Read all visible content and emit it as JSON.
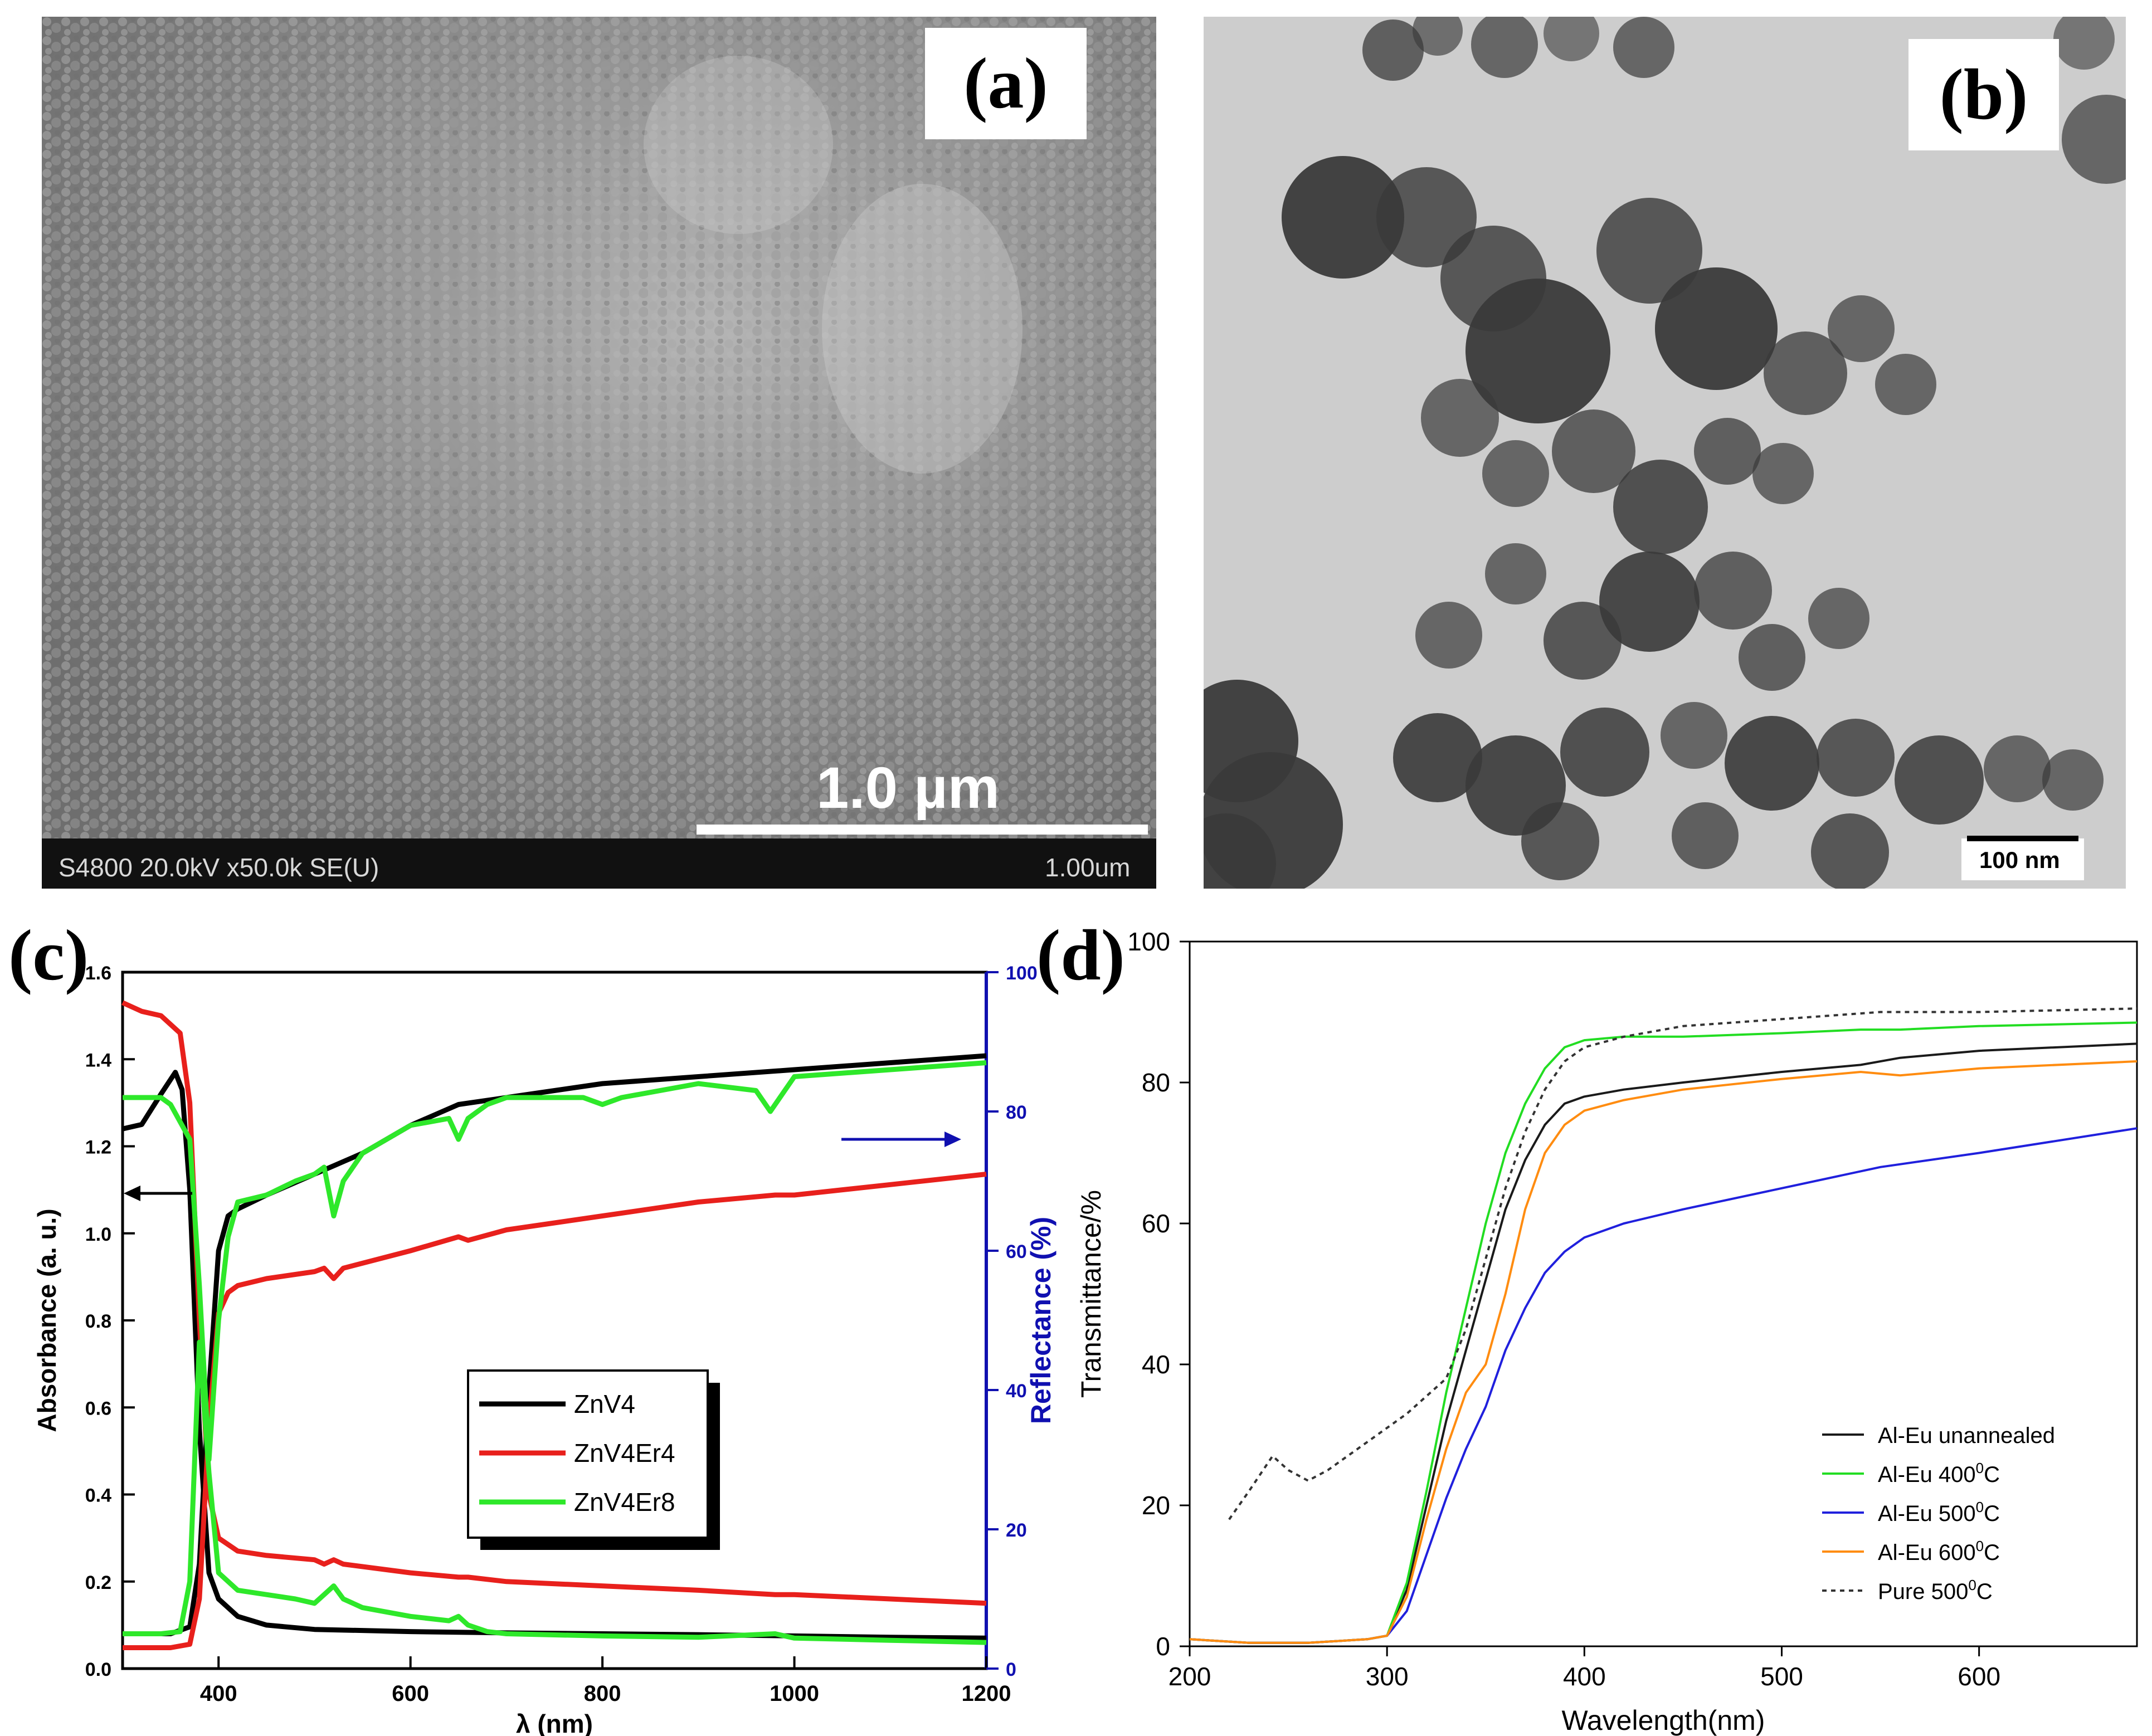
{
  "panels": {
    "a": {
      "label": "(a)",
      "scale_bar_label": "1.0 µm",
      "footer_text": "S4800 20.0kV x50.0k SE(U)",
      "footer_scale": "1.00um"
    },
    "b": {
      "label": "(b)",
      "scale_bar_label": "100 nm"
    },
    "c": {
      "label": "(c)"
    },
    "d": {
      "label": "(d)"
    }
  },
  "colors": {
    "black": "#000000",
    "red": "#e8201c",
    "green": "#2ee82a",
    "blue_axis": "#1010b0",
    "d_black": "#1a1a1a",
    "d_green": "#22dd22",
    "d_blue": "#2020dd",
    "d_orange": "#ff8c10",
    "d_dotted": "#333333"
  },
  "chart_data": [
    {
      "id": "c",
      "type": "line",
      "xlabel": "λ (nm)",
      "ylabel": "Absorbance (a. u.)",
      "y2label": "Reflectance (%)",
      "xlim": [
        300,
        1200
      ],
      "ylim": [
        0,
        1.6
      ],
      "y2lim": [
        0,
        100
      ],
      "xticks": [
        400,
        600,
        800,
        1000,
        1200
      ],
      "yticks": [
        0.0,
        0.2,
        0.4,
        0.6,
        0.8,
        1.0,
        1.2,
        1.4,
        1.6
      ],
      "y2ticks": [
        0,
        20,
        40,
        60,
        80,
        100
      ],
      "legend": {
        "position": "center",
        "entries": [
          "ZnV4",
          "ZnV4Er4",
          "ZnV4Er8"
        ]
      },
      "series": [
        {
          "name": "ZnV4",
          "color": "black",
          "axis": "absorbance",
          "x": [
            300,
            320,
            340,
            355,
            362,
            370,
            380,
            390,
            400,
            420,
            450,
            500,
            600,
            700,
            800,
            900,
            1000,
            1100,
            1200
          ],
          "y": [
            1.24,
            1.25,
            1.32,
            1.37,
            1.33,
            1.1,
            0.55,
            0.22,
            0.16,
            0.12,
            0.1,
            0.09,
            0.085,
            0.082,
            0.08,
            0.078,
            0.075,
            0.072,
            0.07
          ]
        },
        {
          "name": "ZnV4Er4",
          "color": "red",
          "axis": "absorbance",
          "x": [
            300,
            320,
            340,
            360,
            370,
            380,
            390,
            400,
            420,
            450,
            500,
            510,
            520,
            530,
            600,
            650,
            660,
            700,
            800,
            900,
            980,
            1000,
            1100,
            1200
          ],
          "y": [
            1.53,
            1.51,
            1.5,
            1.46,
            1.3,
            0.8,
            0.4,
            0.3,
            0.27,
            0.26,
            0.25,
            0.24,
            0.25,
            0.24,
            0.22,
            0.21,
            0.21,
            0.2,
            0.19,
            0.18,
            0.17,
            0.17,
            0.16,
            0.15
          ]
        },
        {
          "name": "ZnV4",
          "color": "black",
          "axis": "reflectance",
          "x": [
            300,
            350,
            370,
            380,
            390,
            400,
            410,
            420,
            450,
            500,
            550,
            600,
            650,
            700,
            800,
            900,
            1000,
            1100,
            1200
          ],
          "y": [
            5,
            5,
            6,
            15,
            40,
            60,
            65,
            66,
            68,
            71,
            74,
            78,
            81,
            82,
            84,
            85,
            86,
            87,
            88
          ]
        },
        {
          "name": "ZnV4Er4",
          "color": "red",
          "axis": "reflectance",
          "x": [
            300,
            350,
            370,
            380,
            390,
            400,
            410,
            420,
            450,
            500,
            510,
            520,
            530,
            600,
            650,
            660,
            700,
            800,
            900,
            980,
            1000,
            1100,
            1200
          ],
          "y": [
            3,
            3,
            3.5,
            10,
            35,
            51,
            54,
            55,
            56,
            57,
            57.5,
            56,
            57.5,
            60,
            62,
            61.5,
            63,
            65,
            67,
            68,
            68,
            69.5,
            71
          ]
        },
        {
          "name": "ZnV4Er8",
          "color": "green",
          "axis": "absorbance",
          "x": [
            300,
            340,
            360,
            370,
            380,
            390,
            400,
            420,
            450,
            480,
            500,
            510,
            520,
            530,
            550,
            600,
            640,
            650,
            660,
            680,
            700,
            800,
            900,
            980,
            1000,
            1100,
            1200
          ],
          "y": [
            0.08,
            0.08,
            0.085,
            0.2,
            0.75,
            0.45,
            0.22,
            0.18,
            0.17,
            0.16,
            0.15,
            0.17,
            0.19,
            0.16,
            0.14,
            0.12,
            0.11,
            0.12,
            0.1,
            0.085,
            0.08,
            0.075,
            0.072,
            0.08,
            0.07,
            0.065,
            0.06
          ]
        },
        {
          "name": "ZnV4Er8",
          "color": "green",
          "axis": "reflectance",
          "x": [
            300,
            340,
            350,
            370,
            380,
            390,
            400,
            410,
            420,
            450,
            480,
            500,
            510,
            520,
            530,
            550,
            600,
            640,
            650,
            660,
            680,
            700,
            780,
            800,
            820,
            900,
            960,
            975,
            990,
            1000,
            1100,
            1200
          ],
          "y": [
            82,
            82,
            81,
            76,
            55,
            30,
            50,
            62,
            67,
            68,
            70,
            71,
            72,
            65,
            70,
            74,
            78,
            79,
            76,
            79,
            81,
            82,
            82,
            81,
            82,
            84,
            83,
            80,
            83,
            85,
            86,
            87
          ]
        }
      ]
    },
    {
      "id": "d",
      "type": "line",
      "xlabel": "Wavelength(nm)",
      "ylabel": "Transmittance/%",
      "xlim": [
        200,
        680
      ],
      "ylim": [
        0,
        100
      ],
      "xticks": [
        200,
        300,
        400,
        500,
        600
      ],
      "yticks": [
        0,
        20,
        40,
        60,
        80,
        100
      ],
      "legend": {
        "position": "bottom-right"
      },
      "series": [
        {
          "name": "Al-Eu unannealed",
          "color": "d_black",
          "style": "solid",
          "x": [
            200,
            230,
            260,
            290,
            300,
            310,
            320,
            330,
            340,
            350,
            360,
            370,
            380,
            390,
            400,
            420,
            450,
            500,
            540,
            560,
            600,
            680
          ],
          "y": [
            1,
            0.5,
            0.5,
            1,
            1.5,
            8,
            20,
            32,
            42,
            52,
            62,
            69,
            74,
            77,
            78,
            79,
            80,
            81.5,
            82.5,
            83.5,
            84.5,
            85.5
          ]
        },
        {
          "name": "Al-Eu 400°C",
          "color": "d_green",
          "style": "solid",
          "x": [
            200,
            230,
            260,
            290,
            300,
            310,
            320,
            330,
            340,
            350,
            360,
            370,
            380,
            390,
            400,
            420,
            450,
            500,
            540,
            560,
            600,
            680
          ],
          "y": [
            1,
            0.5,
            0.5,
            1,
            1.5,
            9,
            22,
            36,
            48,
            60,
            70,
            77,
            82,
            85,
            86,
            86.5,
            86.5,
            87,
            87.5,
            87.5,
            88,
            88.5
          ]
        },
        {
          "name": "Al-Eu 500°C",
          "color": "d_blue",
          "style": "solid",
          "x": [
            200,
            230,
            260,
            290,
            300,
            310,
            320,
            330,
            340,
            350,
            360,
            370,
            380,
            390,
            400,
            420,
            450,
            500,
            550,
            600,
            680
          ],
          "y": [
            1,
            0.5,
            0.5,
            1,
            1.5,
            5,
            13,
            21,
            28,
            34,
            42,
            48,
            53,
            56,
            58,
            60,
            62,
            65,
            68,
            70,
            73.5
          ]
        },
        {
          "name": "Al-Eu 600°C",
          "color": "d_orange",
          "style": "solid",
          "x": [
            200,
            230,
            260,
            290,
            300,
            310,
            320,
            330,
            340,
            350,
            360,
            370,
            380,
            390,
            400,
            420,
            450,
            500,
            540,
            560,
            600,
            680
          ],
          "y": [
            1,
            0.5,
            0.5,
            1,
            1.5,
            7,
            18,
            28,
            36,
            40,
            50,
            62,
            70,
            74,
            76,
            77.5,
            79,
            80.5,
            81.5,
            81,
            82,
            83
          ]
        },
        {
          "name": "Pure 500°C",
          "color": "d_dotted",
          "style": "dotted",
          "x": [
            220,
            230,
            242,
            250,
            260,
            270,
            290,
            310,
            330,
            340,
            350,
            360,
            370,
            380,
            390,
            400,
            420,
            450,
            500,
            550,
            600,
            680
          ],
          "y": [
            18,
            22,
            27,
            25,
            23.5,
            25,
            29,
            33,
            38,
            45,
            55,
            65,
            73,
            79,
            83,
            85,
            86.5,
            88,
            89,
            90,
            90,
            90.5
          ]
        }
      ],
      "legend_entries": [
        {
          "text": "Al-Eu unannealed",
          "series": 0
        },
        {
          "text": "Al-Eu 400",
          "sup": "0",
          "tail": "C",
          "series": 1
        },
        {
          "text": "Al-Eu 500",
          "sup": "0",
          "tail": "C",
          "series": 2
        },
        {
          "text": "Al-Eu 600",
          "sup": "0",
          "tail": "C",
          "series": 3
        },
        {
          "text": "Pure  500",
          "sup": "0",
          "tail": "C",
          "series": 4
        }
      ]
    }
  ]
}
